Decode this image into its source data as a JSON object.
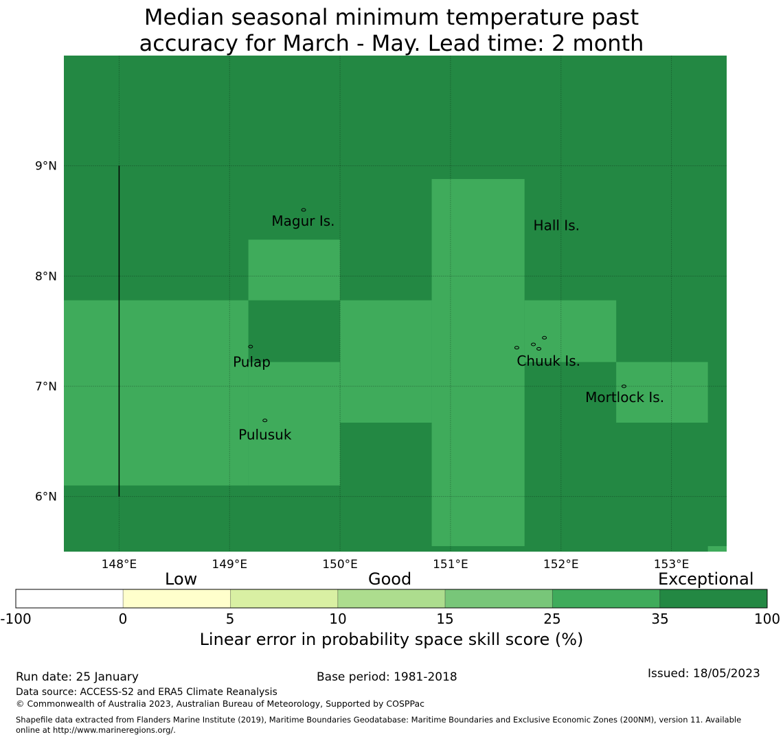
{
  "title_line1": "Median seasonal minimum temperature past",
  "title_line2": "accuracy for March - May. Lead time: 2 month",
  "map": {
    "lon_range": [
      147.5,
      153.5
    ],
    "lat_range": [
      5.5,
      10.0
    ],
    "lon_ticks": [
      148,
      149,
      150,
      151,
      152,
      153
    ],
    "lat_ticks": [
      6,
      7,
      8,
      9
    ],
    "lon_tick_labels": [
      "148°E",
      "149°E",
      "150°E",
      "151°E",
      "152°E",
      "153°E"
    ],
    "lat_tick_labels": [
      "6°N",
      "7°N",
      "8°N",
      "9°N"
    ],
    "background_color": "#238843",
    "good_color": "#3fab5b",
    "cells_25_35": [
      {
        "lon": [
          147.5,
          149.17
        ],
        "lat": [
          6.1,
          7.78
        ]
      },
      {
        "lon": [
          149.17,
          150.0
        ],
        "lat": [
          7.78,
          8.33
        ]
      },
      {
        "lon": [
          149.17,
          150.0
        ],
        "lat": [
          6.1,
          7.22
        ]
      },
      {
        "lon": [
          150.0,
          150.83
        ],
        "lat": [
          6.67,
          7.78
        ]
      },
      {
        "lon": [
          150.83,
          151.67
        ],
        "lat": [
          5.55,
          8.88
        ]
      },
      {
        "lon": [
          151.67,
          152.5
        ],
        "lat": [
          7.22,
          7.78
        ]
      },
      {
        "lon": [
          152.5,
          153.33
        ],
        "lat": [
          6.67,
          7.22
        ]
      },
      {
        "lon": [
          153.33,
          153.5
        ],
        "lat": [
          5.5,
          5.55
        ]
      }
    ],
    "places": [
      {
        "name": "Magur Is.",
        "lon": 149.38,
        "lat": 8.5
      },
      {
        "name": "Hall Is.",
        "lon": 151.75,
        "lat": 8.46
      },
      {
        "name": "Pulap",
        "lon": 149.03,
        "lat": 7.22
      },
      {
        "name": "Chuuk Is.",
        "lon": 151.6,
        "lat": 7.23
      },
      {
        "name": "Mortlock Is.",
        "lon": 152.22,
        "lat": 6.9
      },
      {
        "name": "Pulusuk",
        "lon": 149.08,
        "lat": 6.56
      }
    ],
    "boundary_line": {
      "lon": 148.0,
      "lat": [
        6.0,
        9.0
      ]
    },
    "islands": [
      {
        "lon": 149.67,
        "lat": 8.6
      },
      {
        "lon": 149.19,
        "lat": 7.36
      },
      {
        "lon": 149.32,
        "lat": 6.69
      },
      {
        "lon": 151.6,
        "lat": 7.35
      },
      {
        "lon": 151.75,
        "lat": 7.38
      },
      {
        "lon": 151.85,
        "lat": 7.44
      },
      {
        "lon": 151.8,
        "lat": 7.34
      },
      {
        "lon": 152.57,
        "lat": 7.0
      }
    ]
  },
  "colorbar": {
    "categories": [
      "Low",
      "Good",
      "Exceptional"
    ],
    "ticks": [
      "-100",
      "0",
      "5",
      "10",
      "15",
      "25",
      "35",
      "100"
    ],
    "colors": [
      "#ffffff",
      "#ffffcc",
      "#d9f0a3",
      "#addd8e",
      "#78c679",
      "#3fab5b",
      "#238843"
    ],
    "title": "Linear error in probability space skill score (%)"
  },
  "footer": {
    "run_date": "Run date: 25 January",
    "base_period": "Base period: 1981-2018",
    "issued": "Issued: 18/05/2023",
    "data_source": "Data source: ACCESS-S2 and ERA5 Climate Reanalysis",
    "copyright": "© Commonwealth of Australia 2023, Australian Bureau of Meteorology, Supported by COSPPac",
    "shapefile_line1": "Shapefile data extracted from Flanders Marine Institute (2019), Maritime Boundaries Geodatabase: Maritime Boundaries and Exclusive Economic Zones (200NM), version 11. Available",
    "shapefile_line2": "online at http://www.marineregions.org/."
  }
}
